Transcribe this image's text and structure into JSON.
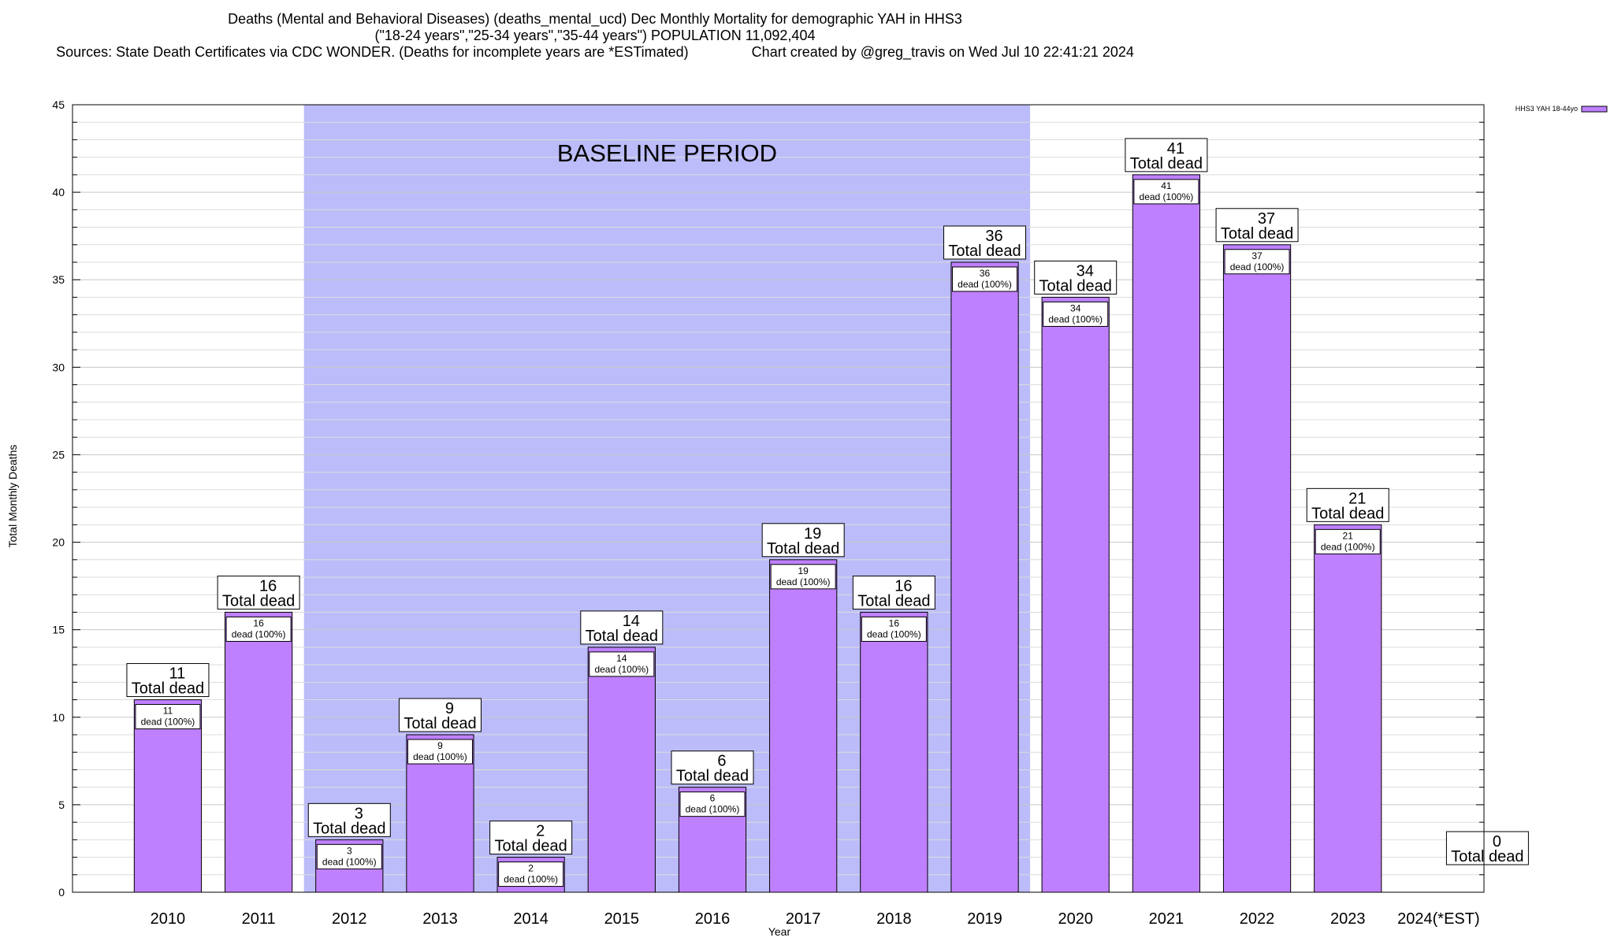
{
  "chart_data": {
    "type": "bar",
    "title_lines": [
      "Deaths (Mental and Behavioral Diseases) (deaths_mental_ucd) Dec Monthly Mortality for demographic YAH in HHS3",
      "(\"18-24 years\",\"25-34 years\",\"35-44 years\") POPULATION 11,092,404",
      "Sources: State Death Certificates via CDC WONDER. (Deaths for incomplete years are *ESTimated)                Chart created by @greg_travis on Wed Jul 10 22:41:21 2024"
    ],
    "xlabel": "Year",
    "ylabel": "Total Monthly Deaths",
    "ylim": [
      0,
      45
    ],
    "yticks": [
      "0",
      "5",
      "10",
      "15",
      "20",
      "25",
      "30",
      "35",
      "40",
      "45"
    ],
    "categories": [
      "2010",
      "2011",
      "2012",
      "2013",
      "2014",
      "2015",
      "2016",
      "2017",
      "2018",
      "2019",
      "2020",
      "2021",
      "2022",
      "2023",
      "2024(*EST)"
    ],
    "series": [
      {
        "name": "HHS3 YAH 18-44yo",
        "values": [
          11,
          16,
          3,
          9,
          2,
          14,
          6,
          19,
          16,
          36,
          34,
          41,
          37,
          21,
          0
        ],
        "color": "#bf80ff"
      }
    ],
    "total_label": "Total dead",
    "inner_label": "dead (100%)",
    "baseline": {
      "label": "BASELINE PERIOD",
      "from": "2012",
      "to": "2019",
      "color": "#bcbcfa"
    },
    "grid": true,
    "legend_position": "top-right"
  }
}
